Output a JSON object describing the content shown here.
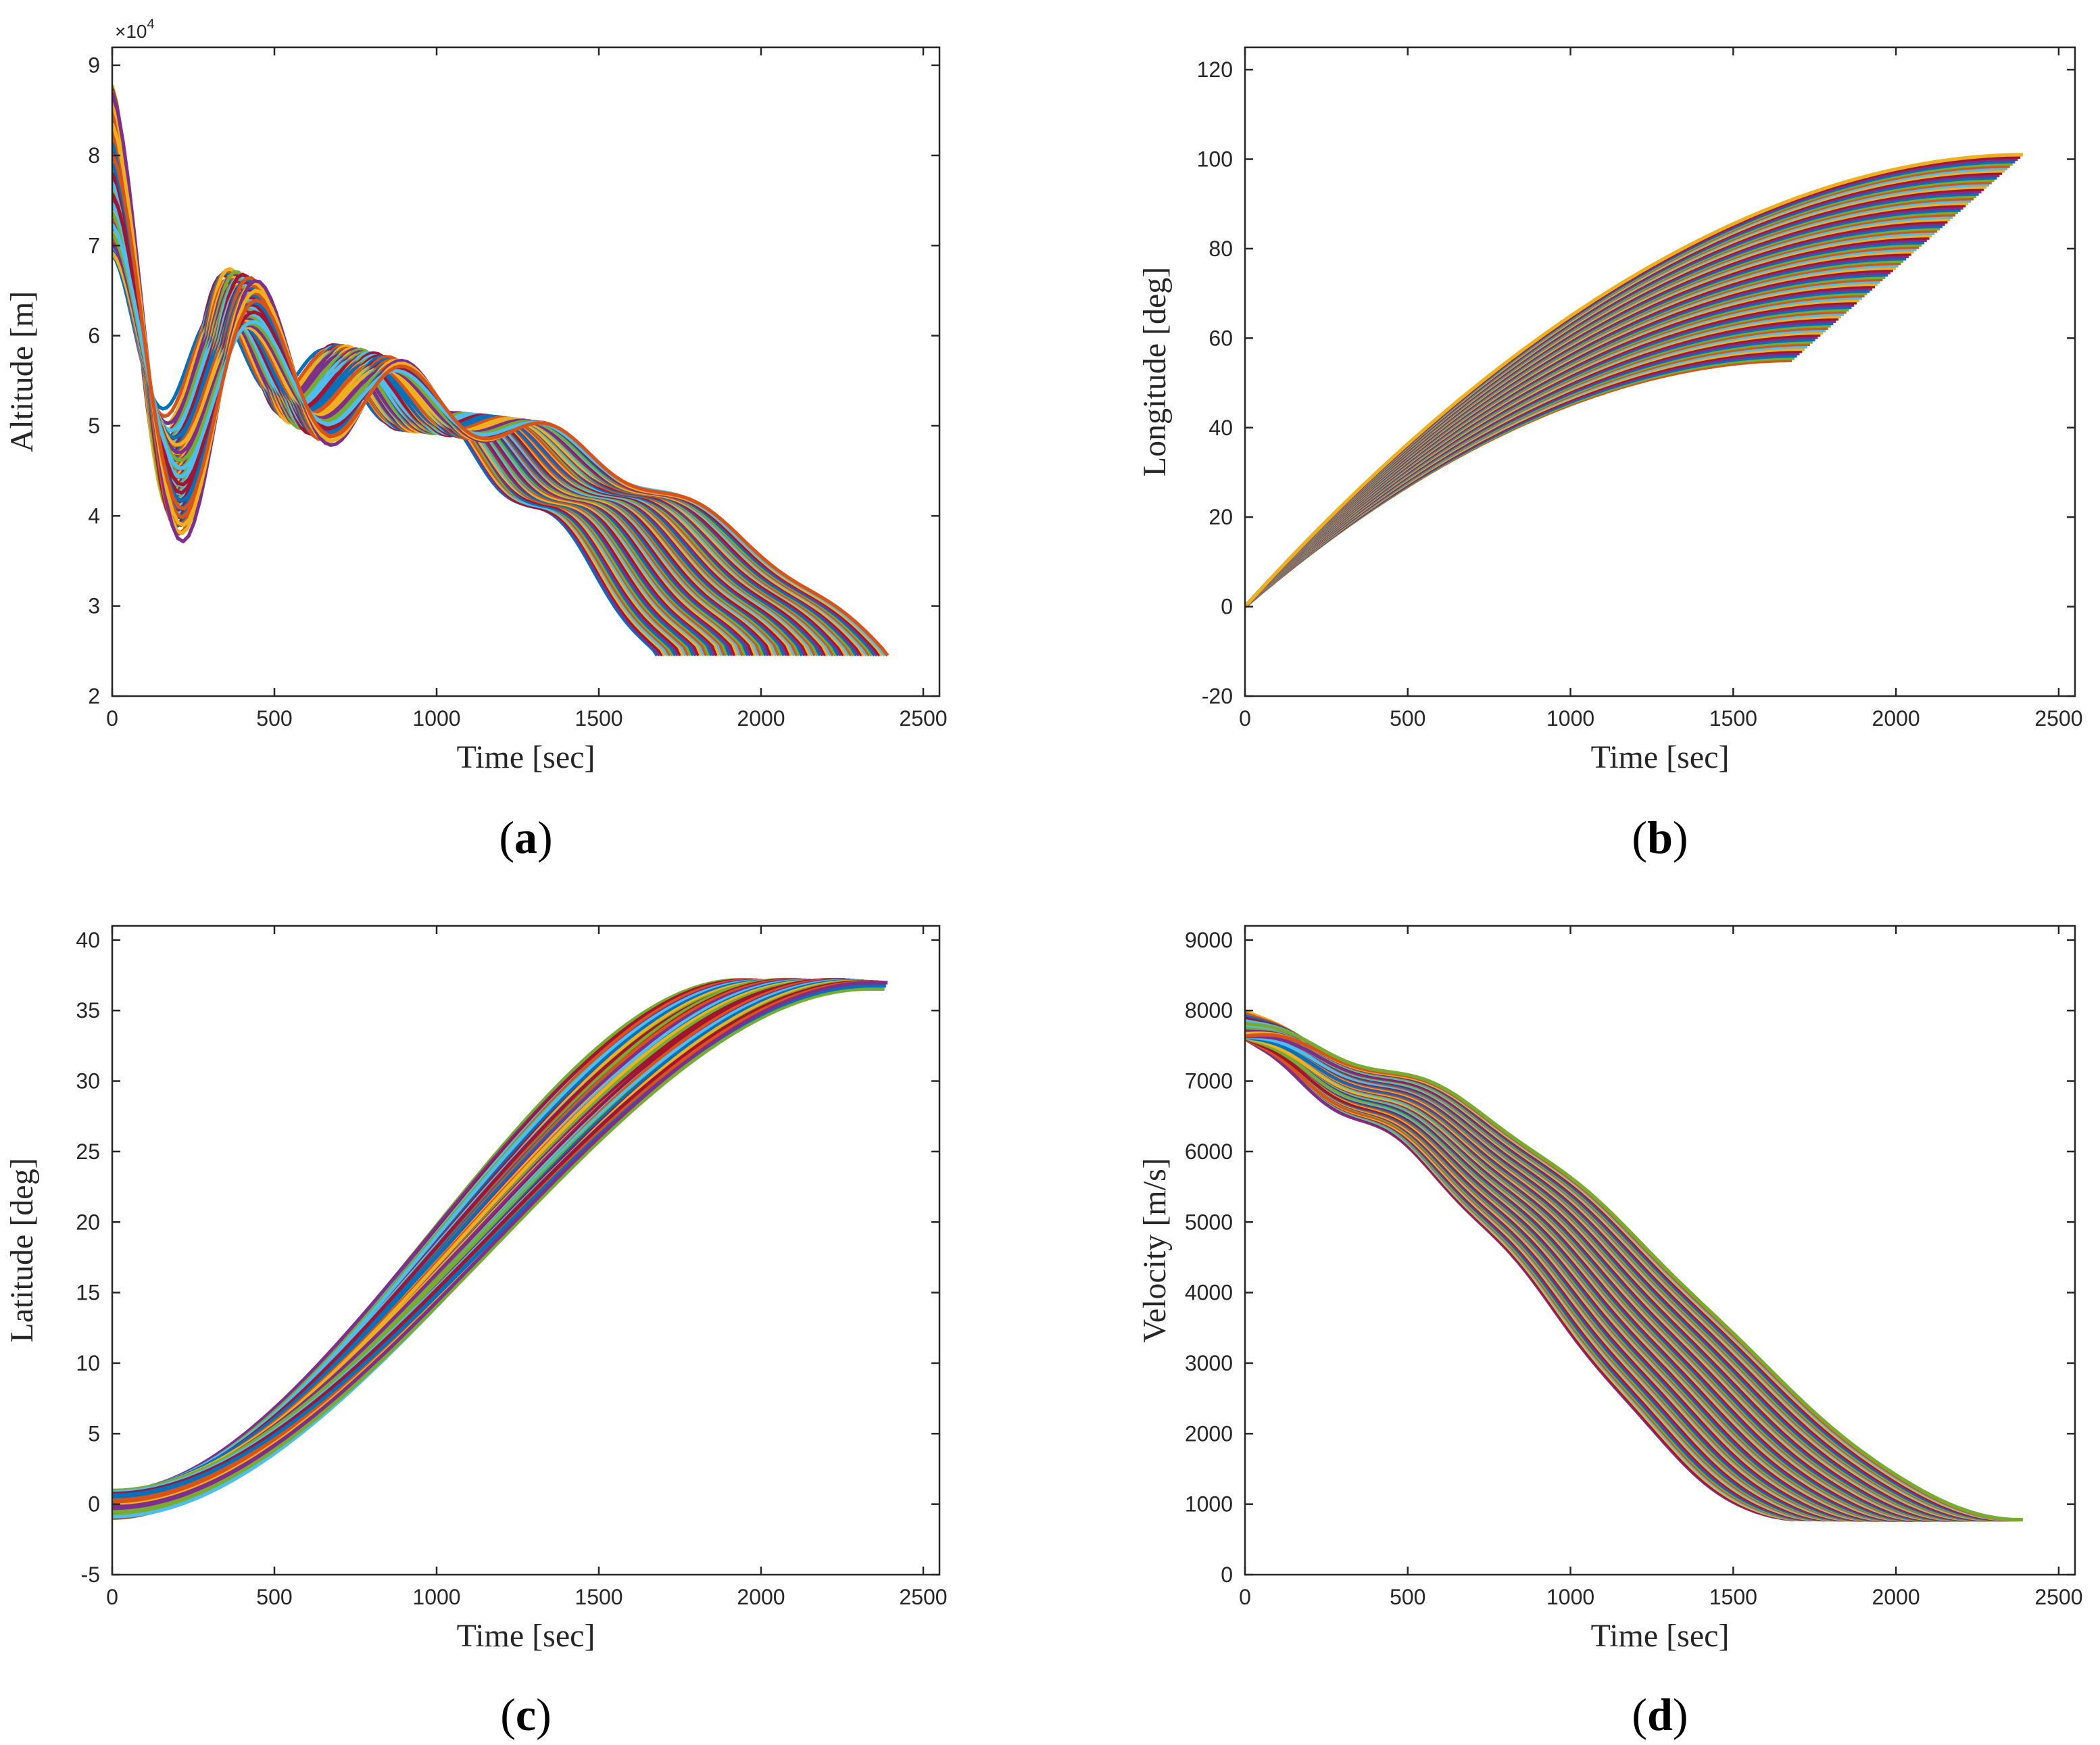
{
  "chart_data": [
    {
      "id": "a",
      "type": "line",
      "panel_label": "a",
      "xlabel": "Time [sec]",
      "ylabel": "Altitude [m]",
      "xlim": [
        0,
        2550
      ],
      "ylim": [
        20000,
        92000
      ],
      "xticks": [
        0,
        500,
        1000,
        1500,
        2000,
        2500
      ],
      "xtick_labels": [
        "0",
        "500",
        "1000",
        "1500",
        "2000",
        "2500"
      ],
      "yticks": [
        20000,
        30000,
        40000,
        50000,
        60000,
        70000,
        80000,
        90000
      ],
      "ytick_labels": [
        "2",
        "3",
        "4",
        "5",
        "6",
        "7",
        "8",
        "9"
      ],
      "y_exponent_label": "×10",
      "y_exponent_power": "4",
      "ensemble": {
        "kind": "altitude",
        "n_series": 90,
        "end_time_range": [
          1680,
          2390
        ],
        "start_value_range": [
          69000,
          88000
        ],
        "terminal_value": 24500
      }
    },
    {
      "id": "b",
      "type": "line",
      "panel_label": "b",
      "xlabel": "Time [sec]",
      "ylabel": "Longitude [deg]",
      "xlim": [
        0,
        2550
      ],
      "ylim": [
        -20,
        125
      ],
      "xticks": [
        0,
        500,
        1000,
        1500,
        2000,
        2500
      ],
      "xtick_labels": [
        "0",
        "500",
        "1000",
        "1500",
        "2000",
        "2500"
      ],
      "yticks": [
        -20,
        0,
        20,
        40,
        60,
        80,
        100,
        120
      ],
      "ytick_labels": [
        "-20",
        "0",
        "20",
        "40",
        "60",
        "80",
        "100",
        "120"
      ],
      "ensemble": {
        "kind": "longitude",
        "n_series": 90,
        "end_time_range": [
          1680,
          2390
        ],
        "start_value": 0,
        "end_value_range": [
          55,
          101
        ]
      }
    },
    {
      "id": "c",
      "type": "line",
      "panel_label": "c",
      "xlabel": "Time [sec]",
      "ylabel": "Latitude [deg]",
      "xlim": [
        0,
        2550
      ],
      "ylim": [
        -5,
        41
      ],
      "xticks": [
        0,
        500,
        1000,
        1500,
        2000,
        2500
      ],
      "xtick_labels": [
        "0",
        "500",
        "1000",
        "1500",
        "2000",
        "2500"
      ],
      "yticks": [
        -5,
        0,
        5,
        10,
        15,
        20,
        25,
        30,
        35,
        40
      ],
      "ytick_labels": [
        "-5",
        "0",
        "5",
        "10",
        "15",
        "20",
        "25",
        "30",
        "35",
        "40"
      ],
      "ensemble": {
        "kind": "latitude",
        "n_series": 90,
        "end_time_range": [
          1960,
          2390
        ],
        "start_value_range": [
          -1,
          1
        ],
        "end_value_range": [
          36.5,
          37.2
        ]
      }
    },
    {
      "id": "d",
      "type": "line",
      "panel_label": "d",
      "xlabel": "Time [sec]",
      "ylabel": "Velocity [m/s]",
      "xlim": [
        0,
        2550
      ],
      "ylim": [
        0,
        9200
      ],
      "xticks": [
        0,
        500,
        1000,
        1500,
        2000,
        2500
      ],
      "xtick_labels": [
        "0",
        "500",
        "1000",
        "1500",
        "2000",
        "2500"
      ],
      "yticks": [
        0,
        1000,
        2000,
        3000,
        4000,
        5000,
        6000,
        7000,
        8000,
        9000
      ],
      "ytick_labels": [
        "0",
        "1000",
        "2000",
        "3000",
        "4000",
        "5000",
        "6000",
        "7000",
        "8000",
        "9000"
      ],
      "ensemble": {
        "kind": "velocity",
        "n_series": 90,
        "end_time_range": [
          1680,
          2390
        ],
        "start_value_range": [
          7600,
          8000
        ],
        "terminal_value": 780
      }
    }
  ],
  "series_palette": [
    "#0072BD",
    "#D95319",
    "#EDB120",
    "#7E2F8E",
    "#77AC30",
    "#4DBEEE",
    "#A2142F"
  ],
  "colors": {
    "axis": "#262626",
    "background": "#ffffff"
  }
}
